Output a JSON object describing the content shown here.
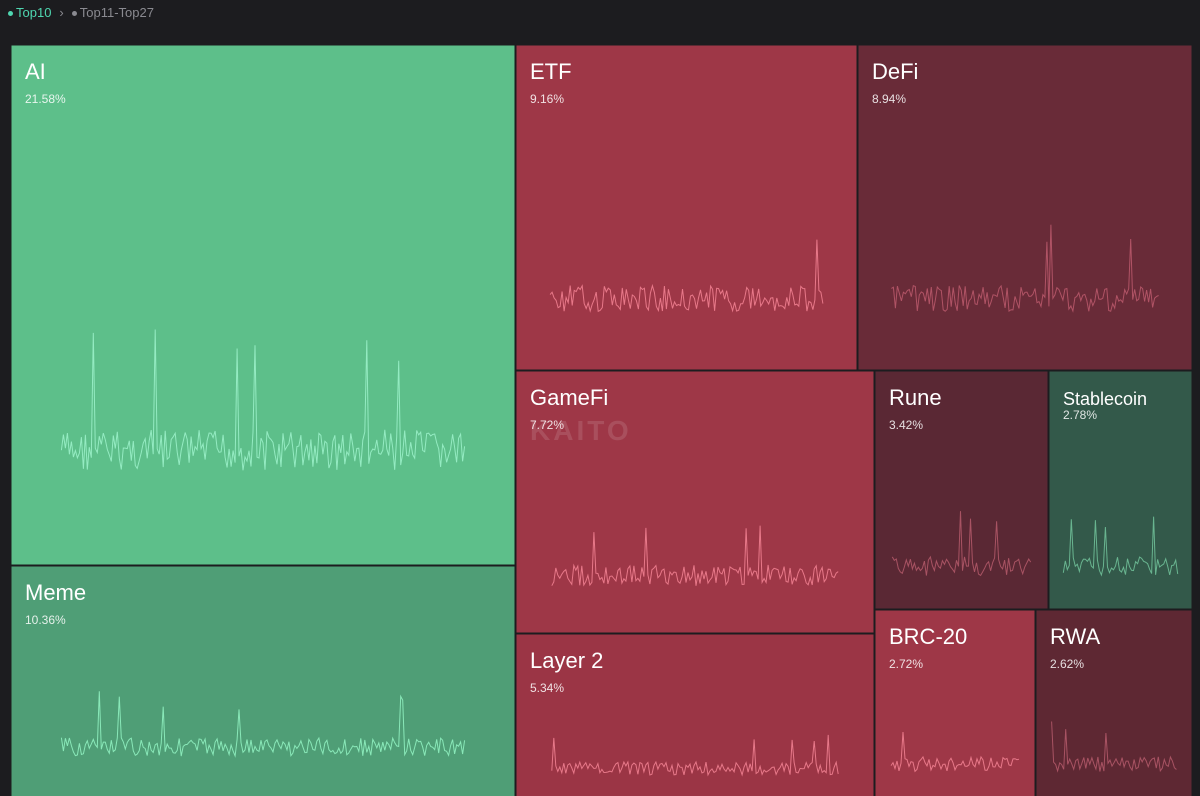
{
  "tabs": [
    {
      "label": "Top10",
      "active": true
    },
    {
      "label": "Top11-Top27",
      "active": false
    }
  ],
  "watermark": "KAITO",
  "tiles": [
    {
      "name": "AI",
      "share": "21.58%",
      "color": "#5dbf8a",
      "line": "#9af0c8"
    },
    {
      "name": "Meme",
      "share": "10.36%",
      "color": "#4f9e76",
      "line": "#8ff0c0"
    },
    {
      "name": "ETF",
      "share": "9.16%",
      "color": "#9e3747",
      "line": "#f08090"
    },
    {
      "name": "DeFi",
      "share": "8.94%",
      "color": "#692b38",
      "line": "#b8586a"
    },
    {
      "name": "GameFi",
      "share": "7.72%",
      "color": "#9e3747",
      "line": "#f08090"
    },
    {
      "name": "Layer 2",
      "share": "5.34%",
      "color": "#9b3545",
      "line": "#f08090"
    },
    {
      "name": "Rune",
      "share": "3.42%",
      "color": "#5a2834",
      "line": "#b05868"
    },
    {
      "name": "Stablecoin",
      "share": "2.78%",
      "color": "#33594a",
      "line": "#6fbf98"
    },
    {
      "name": "BRC-20",
      "share": "2.72%",
      "color": "#9e3747",
      "line": "#f08090"
    },
    {
      "name": "RWA",
      "share": "2.62%",
      "color": "#5e2833",
      "line": "#b05868"
    }
  ]
}
